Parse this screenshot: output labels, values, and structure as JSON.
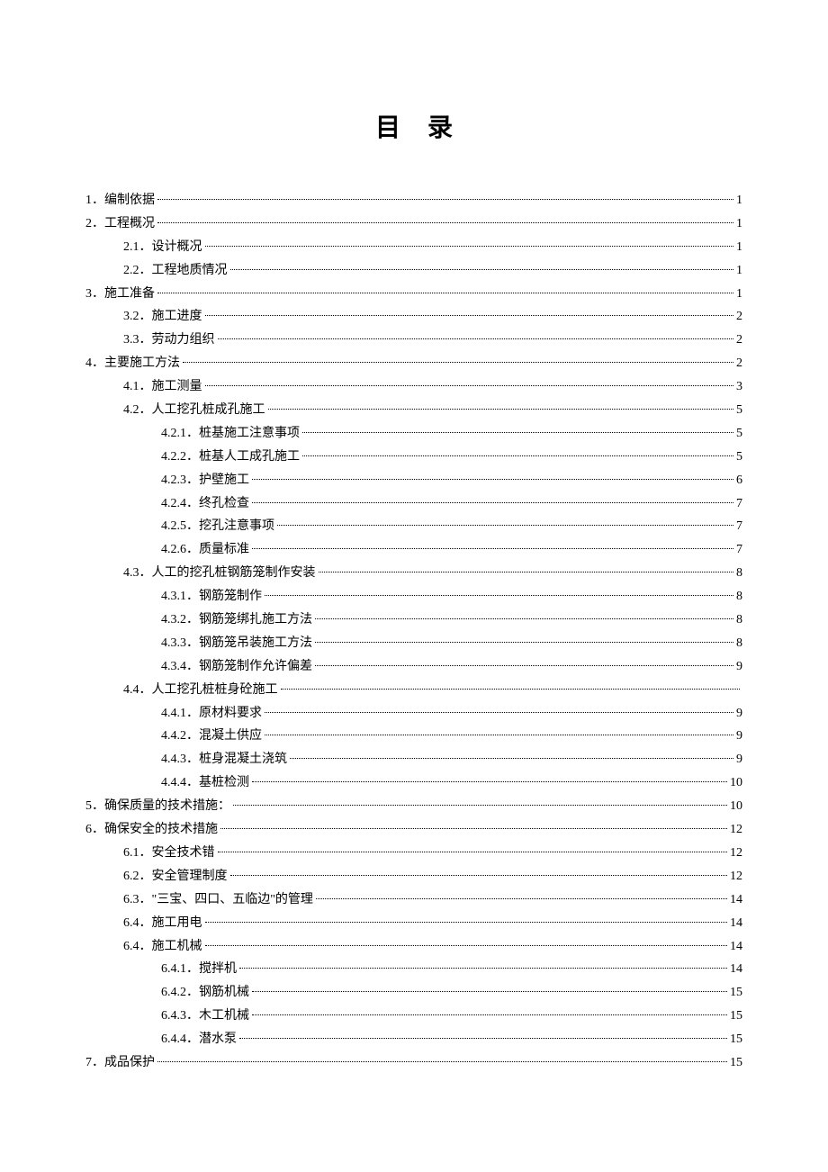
{
  "title": "目录",
  "entries": [
    {
      "level": 0,
      "label": "1．编制依据",
      "page": "1"
    },
    {
      "level": 0,
      "label": "2．工程概况",
      "page": "1"
    },
    {
      "level": 1,
      "label": "2.1．设计概况",
      "page": "1"
    },
    {
      "level": 1,
      "label": "2.2．工程地质情况",
      "page": "1"
    },
    {
      "level": 0,
      "label": "3．施工准备",
      "page": "1"
    },
    {
      "level": 1,
      "label": "3.2．施工进度",
      "page": "2"
    },
    {
      "level": 1,
      "label": "3.3．劳动力组织",
      "page": "2"
    },
    {
      "level": 0,
      "label": "4．主要施工方法",
      "page": "2"
    },
    {
      "level": 1,
      "label": "4.1．施工测量",
      "page": "3"
    },
    {
      "level": 1,
      "label": "4.2．人工挖孔桩成孔施工",
      "page": "5"
    },
    {
      "level": 2,
      "label": "4.2.1．桩基施工注意事项",
      "page": "5"
    },
    {
      "level": 2,
      "label": "4.2.2．桩基人工成孔施工",
      "page": "5"
    },
    {
      "level": 2,
      "label": "4.2.3．护壁施工",
      "page": "6"
    },
    {
      "level": 2,
      "label": "4.2.4．终孔检查",
      "page": "7"
    },
    {
      "level": 2,
      "label": "4.2.5．挖孔注意事项",
      "page": "7"
    },
    {
      "level": 2,
      "label": "4.2.6．质量标准",
      "page": "7"
    },
    {
      "level": 1,
      "label": "4.3．人工的挖孔桩钢筋笼制作安装",
      "page": "8"
    },
    {
      "level": 2,
      "label": "4.3.1．钢筋笼制作",
      "page": "8"
    },
    {
      "level": 2,
      "label": "4.3.2．钢筋笼绑扎施工方法",
      "page": "8"
    },
    {
      "level": 2,
      "label": "4.3.3．钢筋笼吊装施工方法",
      "page": "8"
    },
    {
      "level": 2,
      "label": "4.3.4．钢筋笼制作允许偏差",
      "page": "9"
    },
    {
      "level": 1,
      "label": "4.4．人工挖孔桩桩身砼施工",
      "page": ""
    },
    {
      "level": 2,
      "label": "4.4.1．原材料要求",
      "page": "9"
    },
    {
      "level": 2,
      "label": "4.4.2．混凝土供应",
      "page": "9"
    },
    {
      "level": 2,
      "label": "4.4.3．桩身混凝土浇筑",
      "page": "9"
    },
    {
      "level": 2,
      "label": "4.4.4．基桩检测",
      "page": "10"
    },
    {
      "level": 0,
      "label": "5．确保质量的技术措施：",
      "page": "10"
    },
    {
      "level": 0,
      "label": "6．确保安全的技术措施",
      "page": "12"
    },
    {
      "level": 1,
      "label": "6.1．安全技术错",
      "page": "12"
    },
    {
      "level": 1,
      "label": "6.2．安全管理制度",
      "page": "12"
    },
    {
      "level": 1,
      "label": "6.3．\"三宝、四口、五临边\"的管理",
      "page": "14"
    },
    {
      "level": 1,
      "label": "6.4．施工用电",
      "page": "14"
    },
    {
      "level": 1,
      "label": "6.4．施工机械",
      "page": "14"
    },
    {
      "level": 2,
      "label": "6.4.1．搅拌机",
      "page": "14"
    },
    {
      "level": 2,
      "label": "6.4.2．钢筋机械",
      "page": "15"
    },
    {
      "level": 2,
      "label": "6.4.3．木工机械",
      "page": "15"
    },
    {
      "level": 2,
      "label": "6.4.4．潜水泵",
      "page": "15"
    },
    {
      "level": 0,
      "label": "7．成品保护",
      "page": "15"
    }
  ]
}
